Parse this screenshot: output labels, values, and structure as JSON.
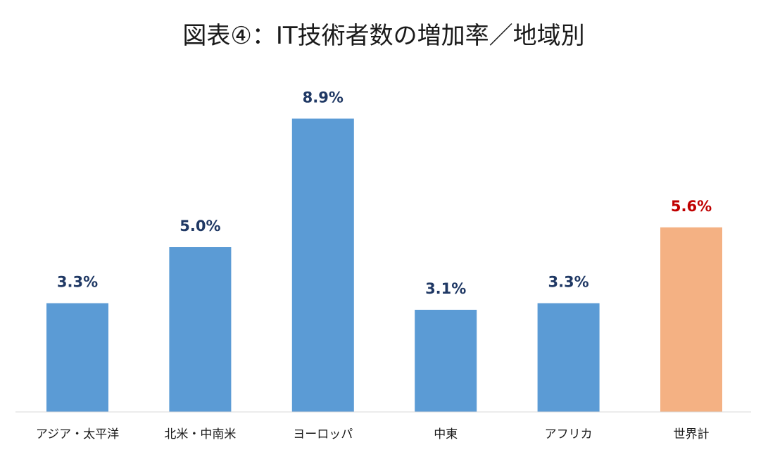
{
  "chart_data": {
    "type": "bar",
    "title": "図表④：IT技術者数の増加率／地域別",
    "xlabel": "",
    "ylabel": "",
    "ylim": [
      0,
      10
    ],
    "grid": false,
    "legend": "none",
    "unit": "%",
    "categories": [
      "アジア・太平洋",
      "北米・中南米",
      "ヨーロッパ",
      "中東",
      "アフリカ",
      "世界計"
    ],
    "values": [
      3.3,
      5.0,
      8.9,
      3.1,
      3.3,
      5.6
    ],
    "data_labels": [
      "3.3%",
      "5.0%",
      "8.9%",
      "3.1%",
      "3.3%",
      "5.6%"
    ],
    "highlight_index": 5,
    "colors": {
      "bar": "#5b9bd5",
      "bar_highlight": "#f4b183",
      "label": "#1f3864",
      "label_highlight": "#c00000",
      "axis": "#d9d9d9"
    }
  }
}
